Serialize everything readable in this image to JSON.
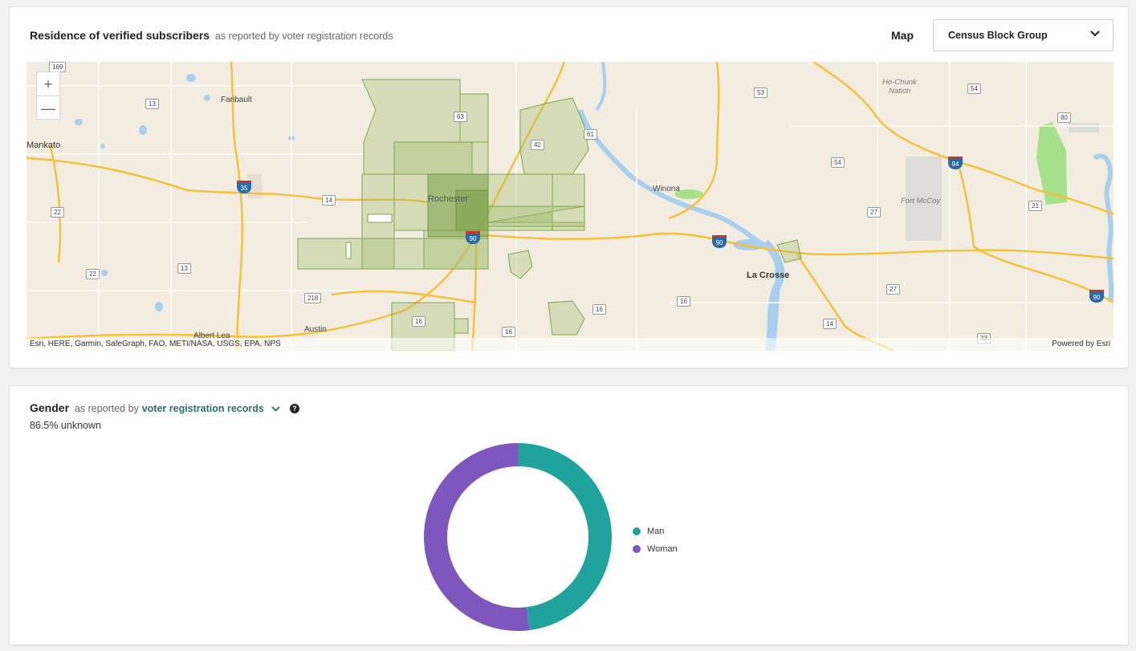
{
  "map_card": {
    "title": "Residence of verified subscribers",
    "subtitle": "as reported by voter registration records",
    "map_label": "Map",
    "select_value": "Census Block Group",
    "zoom_in": "+",
    "zoom_out": "—",
    "attribution_left": "Esri, HERE, Garmin, SafeGraph, FAO, METI/NASA, USGS, EPA, NPS",
    "attribution_right": "Powered by Esri",
    "places": {
      "mankato": "Mankato",
      "faribault": "Faribault",
      "rochester": "Rochester",
      "winona": "Winona",
      "la_crosse": "La Crosse",
      "albert_lea": "Albert Lea",
      "austin": "Austin",
      "fort_mccoy": "Fort McCoy",
      "ho_chunk": "Ho-Chunk",
      "nation": "Nation"
    },
    "routes": {
      "r169": "169",
      "r13a": "13",
      "r22a": "22",
      "r13b": "13",
      "r22b": "22",
      "r14": "14",
      "r218": "218",
      "r16a": "16",
      "r16b": "16",
      "r16c": "16",
      "r16d": "16",
      "r63": "63",
      "r42": "42",
      "r61": "61",
      "r53": "53",
      "r54a": "54",
      "r54b": "54",
      "r80": "80",
      "r21": "21",
      "r27a": "27",
      "r27b": "27",
      "r14b": "14",
      "r33": "33",
      "r35": "35",
      "r90a": "90",
      "r90b": "90",
      "r90c": "90",
      "r94": "94"
    }
  },
  "gender_card": {
    "title": "Gender",
    "subtitle": "as reported by",
    "source_link": "voter registration records",
    "help": "?",
    "unknown_text": "86.5% unknown",
    "legend": [
      {
        "label": "Man",
        "color": "#1fa39c"
      },
      {
        "label": "Woman",
        "color": "#7d57bd"
      }
    ]
  },
  "chart_data": {
    "type": "pie",
    "variant": "donut",
    "categories": [
      "Man",
      "Woman"
    ],
    "values": [
      48,
      52
    ],
    "colors": [
      "#1fa39c",
      "#7d57bd"
    ],
    "legend_position": "right"
  }
}
